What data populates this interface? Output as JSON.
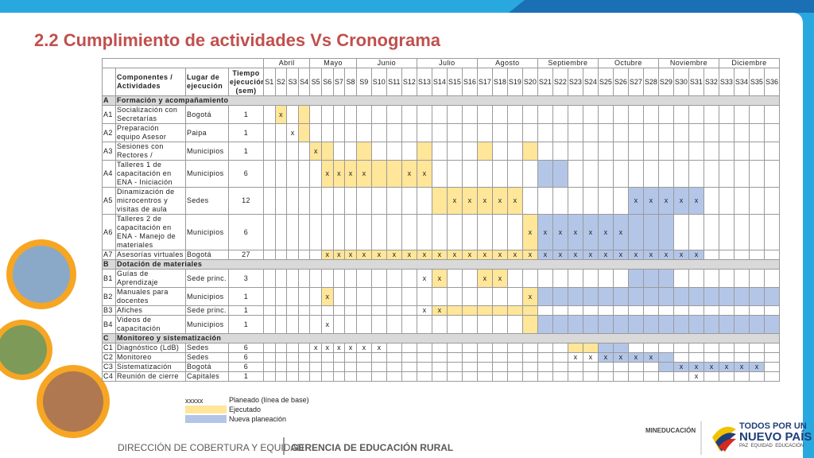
{
  "title": "2.2 Cumplimiento de actividades Vs Cronograma",
  "table": {
    "headers": {
      "components": "Componentes / Actividades",
      "place": "Lugar de ejecución",
      "time": "Tiempo ejecución (sem)"
    },
    "months": [
      "Abril",
      "Mayo",
      "Junio",
      "Julio",
      "Agosto",
      "Septiembre",
      "Octubre",
      "Noviembre",
      "Diciembre"
    ],
    "weeks": [
      "S1",
      "S2",
      "S3",
      "S4",
      "S5",
      "S6",
      "S7",
      "S8",
      "S9",
      "S10",
      "S11",
      "S12",
      "S13",
      "S14",
      "S15",
      "S16",
      "S17",
      "S18",
      "S19",
      "S20",
      "S21",
      "S22",
      "S23",
      "S24",
      "S25",
      "S26",
      "S27",
      "S28",
      "S29",
      "S30",
      "S31",
      "S32",
      "S33",
      "S34",
      "S35",
      "S36"
    ],
    "sections": [
      {
        "code": "A",
        "title": "Formación y acompañamiento",
        "rows": [
          {
            "code": "A1",
            "activity": "Socialización con Secretarías",
            "place": "Bogotá",
            "time": 1,
            "marks": {
              "S2": "x"
            },
            "executed": [
              2,
              4
            ]
          },
          {
            "code": "A2",
            "activity": "Preparación equipo Asesor",
            "place": "Paipa",
            "time": 1,
            "marks": {
              "S3": "x"
            },
            "executed": [
              4
            ]
          },
          {
            "code": "A3",
            "activity": "Sesiones con Rectores /",
            "place": "Municipios",
            "time": 1,
            "marks": {
              "S5": "x"
            },
            "executed": [
              5,
              6,
              9,
              13,
              17,
              20
            ]
          },
          {
            "code": "A4",
            "activity": "Talleres 1 de capacitación en ENA - Iniciación",
            "place": "Municipios",
            "time": 6,
            "marks": {
              "S6": "x",
              "S7": "x",
              "S8": "x",
              "S9": "x",
              "S12": "x",
              "S13": "x"
            },
            "executed": [
              6,
              7,
              8,
              9,
              10,
              11,
              12,
              13
            ],
            "replanned": [
              21,
              22
            ]
          },
          {
            "code": "A5",
            "activity": "Dinamización de microcentros y visitas de aula",
            "place": "Sedes",
            "time": 12,
            "marks": {
              "S15": "x",
              "S16": "x",
              "S17": "x",
              "S18": "x",
              "S19": "x",
              "S27": "x",
              "S28": "x",
              "S29": "x",
              "S30": "x",
              "S31": "x"
            },
            "executed": [
              14,
              15,
              16,
              17,
              18,
              19
            ],
            "replanned": [
              27,
              28,
              29,
              30,
              31
            ]
          },
          {
            "code": "A6",
            "activity": "Talleres 2 de capacitación en ENA - Manejo de materiales",
            "place": "Municipios",
            "time": 6,
            "marks": {
              "S20": "x",
              "S21": "x",
              "S22": "x",
              "S23": "x",
              "S24": "x",
              "S25": "x",
              "S26": "x"
            },
            "executed": [
              20
            ],
            "replanned": [
              21,
              22,
              23,
              24,
              25,
              26,
              27,
              28,
              29
            ]
          },
          {
            "code": "A7",
            "activity": "Asesorías virtuales",
            "place": "Bogotá",
            "time": 27,
            "marks": {
              "S6": "x",
              "S7": "x",
              "S8": "x",
              "S9": "x",
              "S10": "x",
              "S11": "x",
              "S12": "x",
              "S13": "x",
              "S14": "x",
              "S15": "x",
              "S16": "x",
              "S17": "x",
              "S18": "x",
              "S19": "x",
              "S20": "x",
              "S21": "x",
              "S22": "x",
              "S23": "x",
              "S24": "x",
              "S25": "x",
              "S26": "x",
              "S27": "x",
              "S28": "x",
              "S29": "x",
              "S30": "x",
              "S31": "x"
            },
            "executed": [
              6,
              7,
              8,
              9,
              10,
              11,
              12,
              13,
              14,
              15,
              16,
              17,
              18,
              19,
              20
            ],
            "replanned": [
              21,
              22,
              23,
              24,
              25,
              26,
              27,
              28,
              29,
              30,
              31
            ]
          }
        ]
      },
      {
        "code": "B",
        "title": "Dotación de materiales",
        "rows": [
          {
            "code": "B1",
            "activity": "Guías de Aprendizaje",
            "place": "Sede princ.",
            "time": 3,
            "marks": {
              "S13": "x",
              "S14": "x",
              "S17": "x",
              "S18": "x"
            },
            "executed": [
              14,
              17,
              18
            ],
            "replanned": [
              27,
              28,
              29
            ]
          },
          {
            "code": "B2",
            "activity": "Manuales para docentes",
            "place": "Municipios",
            "time": 1,
            "marks": {
              "S6": "x",
              "S20": "x"
            },
            "executed": [
              6,
              20
            ],
            "replanned": [
              21,
              22,
              23,
              24,
              25,
              26,
              27,
              28,
              29,
              30,
              31,
              32,
              33,
              34,
              35,
              36
            ]
          },
          {
            "code": "B3",
            "activity": "Afiches",
            "place": "Sede princ.",
            "time": 1,
            "marks": {
              "S13": "x",
              "S14": "x"
            },
            "executed": [
              14,
              15,
              16,
              17,
              18,
              19,
              20
            ]
          },
          {
            "code": "B4",
            "activity": "Videos de capacitación",
            "place": "Municipios",
            "time": 1,
            "marks": {
              "S6": "x"
            },
            "executed": [
              20
            ],
            "replanned": [
              21,
              22,
              23,
              24,
              25,
              26,
              27,
              28,
              29,
              30,
              31,
              32,
              33,
              34,
              35,
              36
            ]
          }
        ]
      },
      {
        "code": "C",
        "title": "Monitoreo y sistematización",
        "rows": [
          {
            "code": "C1",
            "activity": "Diagnóstico (LdB)",
            "place": "Sedes",
            "time": 6,
            "marks": {
              "S5": "x",
              "S6": "x",
              "S7": "x",
              "S8": "x",
              "S9": "x",
              "S10": "x"
            },
            "executed": [
              23,
              24
            ],
            "replanned": [
              25,
              26
            ]
          },
          {
            "code": "C2",
            "activity": "Monitoreo",
            "place": "Sedes",
            "time": 6,
            "marks": {
              "S23": "x",
              "S24": "x",
              "S25": "x",
              "S26": "x",
              "S27": "x",
              "S28": "x"
            },
            "replanned": [
              25,
              26,
              27,
              28,
              29
            ]
          },
          {
            "code": "C3",
            "activity": "Sistematización",
            "place": "Bogotá",
            "time": 6,
            "marks": {
              "S30": "x",
              "S31": "x",
              "S32": "x",
              "S33": "x",
              "S34": "x",
              "S35": "x"
            },
            "replanned": [
              29,
              30,
              31,
              32,
              33,
              34,
              35
            ]
          },
          {
            "code": "C4",
            "activity": "Reunión de cierre",
            "place": "Capitales",
            "time": 1,
            "marks": {
              "S31": "x"
            }
          }
        ]
      }
    ]
  },
  "legend": {
    "sample": "xxxxx",
    "planned": "Planeado (línea de base)",
    "executed": "Ejecutado",
    "replanned": "Nueva planeación"
  },
  "footer": {
    "left": "DIRECCIÓN DE COBERTURA Y EQUIDAD",
    "right": "GERENCIA DE EDUCACIÓN RURAL",
    "ministry": "MINEDUCACIÓN",
    "slogan_1": "TODOS POR UN",
    "slogan_2": "NUEVO PAÍS",
    "slogan_3": "PAZ  EQUIDAD  EDUCACIÓN"
  }
}
